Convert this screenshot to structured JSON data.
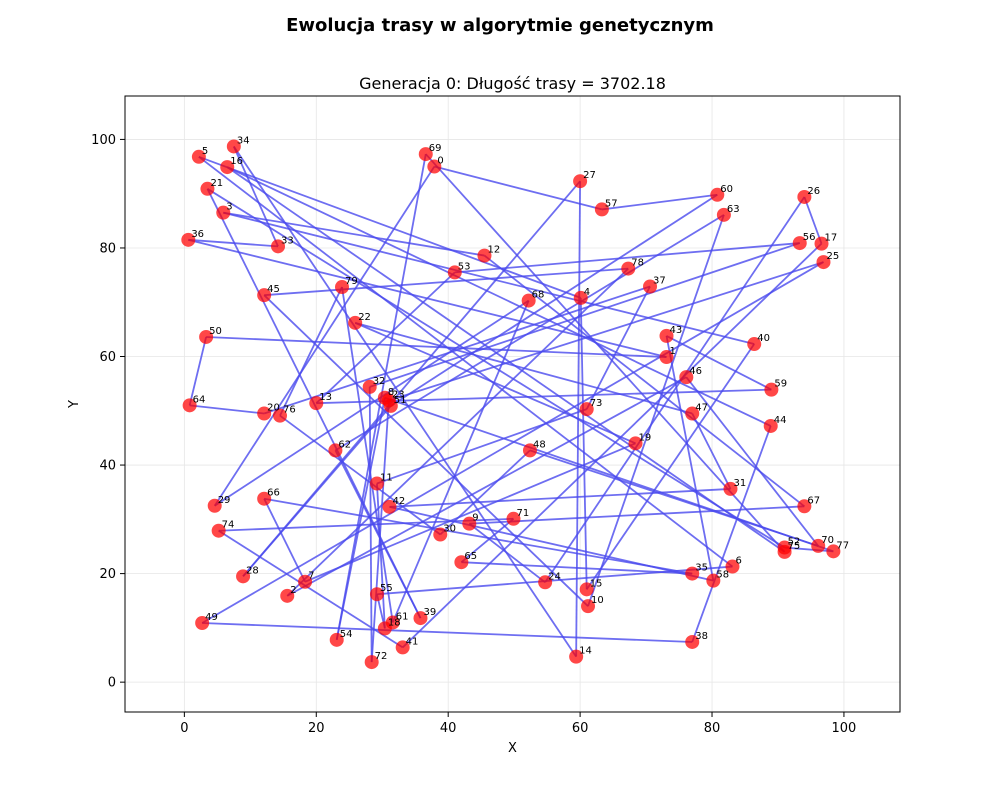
{
  "suptitle": "Ewolucja trasy w algorytmie genetycznym",
  "chart_data": {
    "type": "scatter",
    "title": "Generacja 0: Długość trasy = 3702.18",
    "xlabel": "X",
    "ylabel": "Y",
    "xlim": [
      -9,
      108.5
    ],
    "ylim": [
      -5.5,
      108
    ],
    "xticks": [
      0,
      20,
      40,
      60,
      80,
      100
    ],
    "yticks": [
      0,
      20,
      40,
      60,
      80,
      100
    ],
    "grid": true,
    "point_color": "#ff0000",
    "line_color": "#4a4aee",
    "points": [
      {
        "id": 0,
        "x": 37.9,
        "y": 95.0
      },
      {
        "id": 1,
        "x": 73.1,
        "y": 59.9
      },
      {
        "id": 2,
        "x": 15.6,
        "y": 15.9
      },
      {
        "id": 3,
        "x": 5.9,
        "y": 86.5
      },
      {
        "id": 4,
        "x": 60.1,
        "y": 70.8
      },
      {
        "id": 5,
        "x": 2.2,
        "y": 96.8
      },
      {
        "id": 6,
        "x": 83.1,
        "y": 21.3
      },
      {
        "id": 7,
        "x": 18.3,
        "y": 18.5
      },
      {
        "id": 8,
        "x": 30.4,
        "y": 52.4
      },
      {
        "id": 9,
        "x": 43.2,
        "y": 29.2
      },
      {
        "id": 10,
        "x": 61.2,
        "y": 14.0
      },
      {
        "id": 11,
        "x": 29.2,
        "y": 36.6
      },
      {
        "id": 12,
        "x": 45.5,
        "y": 78.6
      },
      {
        "id": 13,
        "x": 20.0,
        "y": 51.4
      },
      {
        "id": 14,
        "x": 59.4,
        "y": 4.7
      },
      {
        "id": 15,
        "x": 61.0,
        "y": 17.1
      },
      {
        "id": 16,
        "x": 6.5,
        "y": 94.9
      },
      {
        "id": 17,
        "x": 96.6,
        "y": 80.8
      },
      {
        "id": 18,
        "x": 30.4,
        "y": 9.9
      },
      {
        "id": 19,
        "x": 68.4,
        "y": 44.0
      },
      {
        "id": 20,
        "x": 12.1,
        "y": 49.5
      },
      {
        "id": 21,
        "x": 3.5,
        "y": 90.9
      },
      {
        "id": 22,
        "x": 25.9,
        "y": 66.2
      },
      {
        "id": 23,
        "x": 31.0,
        "y": 51.9
      },
      {
        "id": 24,
        "x": 54.7,
        "y": 18.4
      },
      {
        "id": 25,
        "x": 96.9,
        "y": 77.4
      },
      {
        "id": 26,
        "x": 94.0,
        "y": 89.4
      },
      {
        "id": 27,
        "x": 60.0,
        "y": 92.3
      },
      {
        "id": 28,
        "x": 8.9,
        "y": 19.5
      },
      {
        "id": 29,
        "x": 4.6,
        "y": 32.5
      },
      {
        "id": 30,
        "x": 38.8,
        "y": 27.2
      },
      {
        "id": 31,
        "x": 82.8,
        "y": 35.6
      },
      {
        "id": 32,
        "x": 28.1,
        "y": 54.4
      },
      {
        "id": 33,
        "x": 14.2,
        "y": 80.3
      },
      {
        "id": 34,
        "x": 7.5,
        "y": 98.7
      },
      {
        "id": 35,
        "x": 77.0,
        "y": 20.0
      },
      {
        "id": 36,
        "x": 0.6,
        "y": 81.5
      },
      {
        "id": 37,
        "x": 70.6,
        "y": 72.9
      },
      {
        "id": 38,
        "x": 77.0,
        "y": 7.4
      },
      {
        "id": 39,
        "x": 35.8,
        "y": 11.8
      },
      {
        "id": 40,
        "x": 86.4,
        "y": 62.3
      },
      {
        "id": 41,
        "x": 33.1,
        "y": 6.4
      },
      {
        "id": 42,
        "x": 31.1,
        "y": 32.3
      },
      {
        "id": 43,
        "x": 73.1,
        "y": 63.8
      },
      {
        "id": 44,
        "x": 88.9,
        "y": 47.2
      },
      {
        "id": 45,
        "x": 12.1,
        "y": 71.3
      },
      {
        "id": 46,
        "x": 76.1,
        "y": 56.2
      },
      {
        "id": 47,
        "x": 77.0,
        "y": 49.5
      },
      {
        "id": 48,
        "x": 52.4,
        "y": 42.7
      },
      {
        "id": 49,
        "x": 2.7,
        "y": 10.9
      },
      {
        "id": 50,
        "x": 3.3,
        "y": 63.6
      },
      {
        "id": 51,
        "x": 31.3,
        "y": 50.9
      },
      {
        "id": 52,
        "x": 91.0,
        "y": 24.8
      },
      {
        "id": 53,
        "x": 41.0,
        "y": 75.5
      },
      {
        "id": 54,
        "x": 23.1,
        "y": 7.8
      },
      {
        "id": 55,
        "x": 29.2,
        "y": 16.2
      },
      {
        "id": 56,
        "x": 93.3,
        "y": 80.9
      },
      {
        "id": 57,
        "x": 63.3,
        "y": 87.1
      },
      {
        "id": 58,
        "x": 80.2,
        "y": 18.7
      },
      {
        "id": 59,
        "x": 89.0,
        "y": 53.9
      },
      {
        "id": 60,
        "x": 80.8,
        "y": 89.8
      },
      {
        "id": 61,
        "x": 31.6,
        "y": 11.0
      },
      {
        "id": 62,
        "x": 22.9,
        "y": 42.7
      },
      {
        "id": 63,
        "x": 81.8,
        "y": 86.1
      },
      {
        "id": 64,
        "x": 0.8,
        "y": 51.0
      },
      {
        "id": 65,
        "x": 42.0,
        "y": 22.1
      },
      {
        "id": 66,
        "x": 12.1,
        "y": 33.8
      },
      {
        "id": 67,
        "x": 94.0,
        "y": 32.4
      },
      {
        "id": 68,
        "x": 52.2,
        "y": 70.3
      },
      {
        "id": 69,
        "x": 36.6,
        "y": 97.3
      },
      {
        "id": 70,
        "x": 96.1,
        "y": 25.1
      },
      {
        "id": 71,
        "x": 49.9,
        "y": 30.1
      },
      {
        "id": 72,
        "x": 28.4,
        "y": 3.7
      },
      {
        "id": 73,
        "x": 61.0,
        "y": 50.3
      },
      {
        "id": 74,
        "x": 5.2,
        "y": 27.9
      },
      {
        "id": 75,
        "x": 91.0,
        "y": 24.0
      },
      {
        "id": 76,
        "x": 14.5,
        "y": 49.1
      },
      {
        "id": 77,
        "x": 98.4,
        "y": 24.1
      },
      {
        "id": 78,
        "x": 67.3,
        "y": 76.2
      },
      {
        "id": 79,
        "x": 23.9,
        "y": 72.8
      }
    ],
    "route": [
      0,
      57,
      60,
      51,
      28,
      27,
      14,
      34,
      33,
      36,
      1,
      50,
      64,
      20,
      37,
      73,
      11,
      18,
      55,
      6,
      5,
      4,
      15,
      40,
      3,
      12,
      67,
      9,
      24,
      26,
      17,
      41,
      74,
      71,
      65,
      35,
      66,
      7,
      19,
      22,
      47,
      31,
      42,
      58,
      43,
      59,
      13,
      53,
      56,
      32,
      72,
      23,
      25,
      49,
      38,
      44,
      16,
      75,
      69,
      54,
      8,
      77,
      52,
      21,
      39,
      62,
      63,
      10,
      45,
      78,
      2,
      46,
      70,
      48,
      30,
      76,
      79,
      61,
      68,
      29,
      0
    ]
  }
}
